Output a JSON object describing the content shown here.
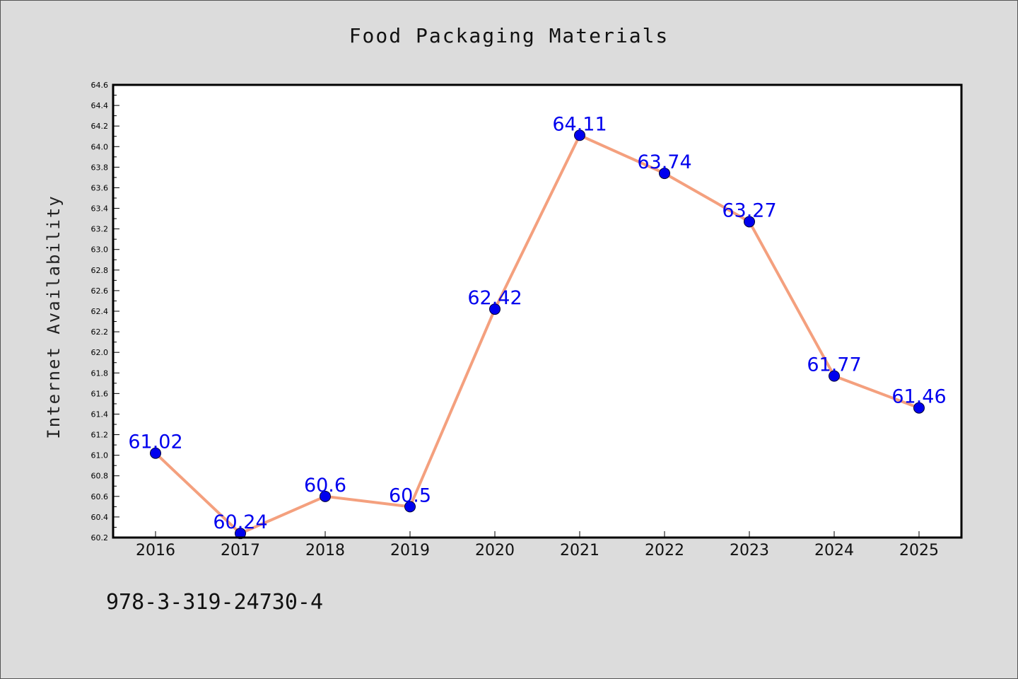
{
  "chart_data": {
    "type": "line",
    "title": "Food Packaging Materials",
    "xlabel": "",
    "ylabel": "Internet Availability",
    "categories": [
      "2016",
      "2017",
      "2018",
      "2019",
      "2020",
      "2021",
      "2022",
      "2023",
      "2024",
      "2025"
    ],
    "values": [
      61.02,
      60.24,
      60.6,
      60.5,
      62.42,
      64.11,
      63.74,
      63.27,
      61.77,
      61.46
    ],
    "data_labels": [
      "61.02",
      "60.24",
      "60.6",
      "60.5",
      "62.42",
      "64.11",
      "63.74",
      "63.27",
      "61.77",
      "61.46"
    ],
    "ylim": [
      60.2,
      64.6
    ],
    "yticks": [
      "60.2",
      "60.4",
      "60.6",
      "60.8",
      "61.0",
      "61.2",
      "61.4",
      "61.6",
      "61.8",
      "62.0",
      "62.2",
      "62.4",
      "62.6",
      "62.8",
      "63.0",
      "63.2",
      "63.4",
      "63.6",
      "63.8",
      "64.0",
      "64.2",
      "64.4",
      "64.6"
    ],
    "grid": false,
    "line_color": "#f4a07e",
    "marker_color": "#0000ee",
    "label_color": "#0000ee"
  },
  "footer": {
    "code": "978-3-319-24730-4"
  }
}
